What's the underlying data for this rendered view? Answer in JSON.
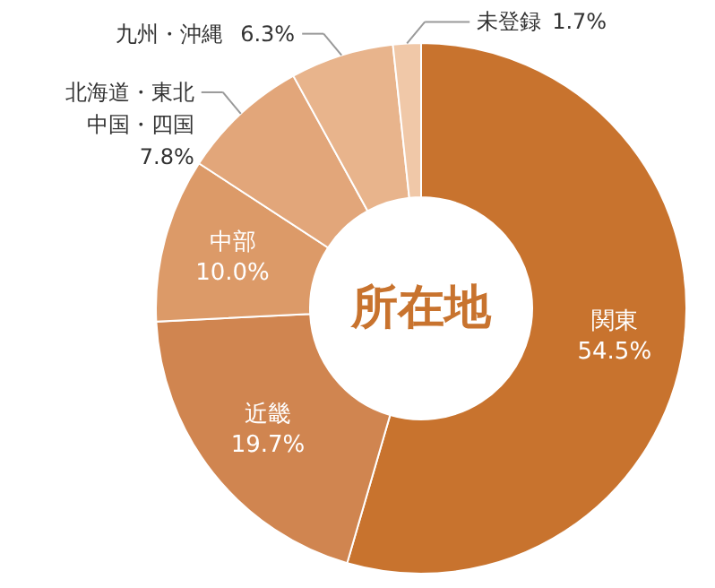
{
  "chart_data": {
    "type": "donut",
    "title": "所在地",
    "categories": [
      "関東",
      "近畿",
      "中部",
      "北海道・東北中国・四国",
      "九州・沖縄",
      "未登録"
    ],
    "values": [
      54.5,
      19.7,
      10.0,
      7.8,
      6.3,
      1.7
    ],
    "value_labels": [
      "54.5%",
      "19.7%",
      "10.0%",
      "7.8%",
      "6.3%",
      "1.7%"
    ],
    "colors": [
      "#c8732e",
      "#d08550",
      "#dc9a68",
      "#e2a67a",
      "#e8b48c",
      "#f0c8a8"
    ]
  }
}
